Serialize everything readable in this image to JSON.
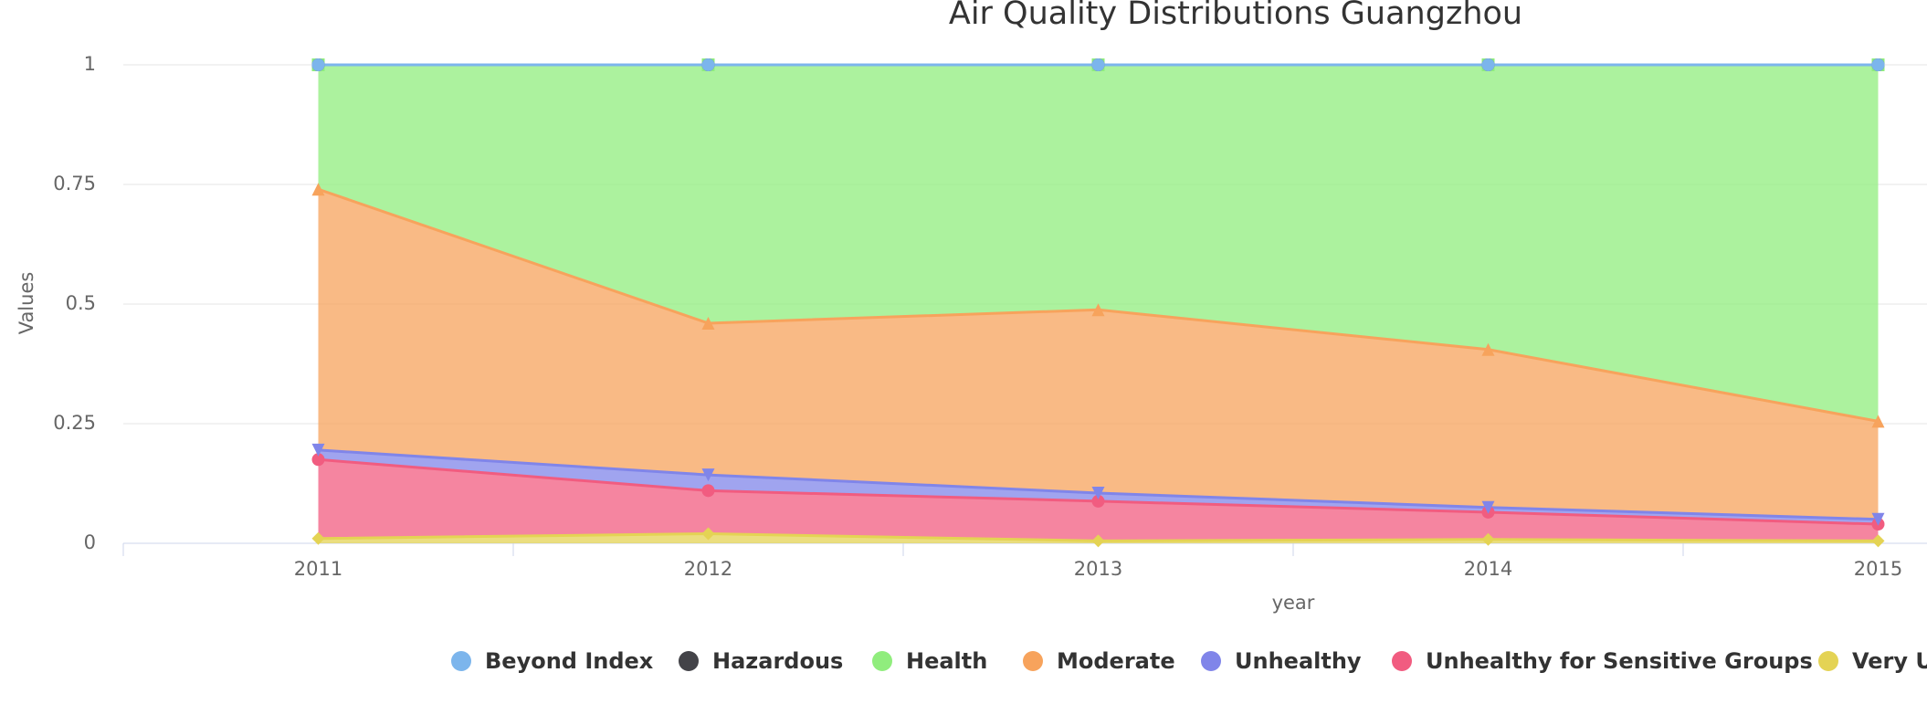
{
  "chart_data": {
    "type": "area",
    "stacked": true,
    "title": "Air Quality Distributions Guangzhou",
    "x_label": "year",
    "y_label": "Values",
    "categories": [
      "2011",
      "2012",
      "2013",
      "2014",
      "2015"
    ],
    "ylim": [
      0,
      1
    ],
    "yticks": [
      0,
      0.25,
      0.5,
      0.75,
      1
    ],
    "grid": true,
    "series": [
      {
        "name": "Beyond Index",
        "color": "#7cb5ec",
        "marker": "circle",
        "values": [
          0,
          0,
          0,
          0,
          0
        ]
      },
      {
        "name": "Hazardous",
        "color": "#434348",
        "marker": "circle",
        "values": [
          0,
          0,
          0,
          0,
          0
        ]
      },
      {
        "name": "Health",
        "color": "#90ed7d",
        "marker": "square",
        "values": [
          0.26,
          0.54,
          0.512,
          0.595,
          0.745
        ]
      },
      {
        "name": "Moderate",
        "color": "#f7a35c",
        "marker": "triangle",
        "values": [
          0.545,
          0.317,
          0.383,
          0.33,
          0.205
        ]
      },
      {
        "name": "Unhealthy",
        "color": "#8085e9",
        "marker": "triangle-down",
        "values": [
          0.02,
          0.033,
          0.017,
          0.01,
          0.01
        ]
      },
      {
        "name": "Unhealthy for Sensitive Groups",
        "color": "#f15c80",
        "marker": "circle",
        "values": [
          0.165,
          0.09,
          0.083,
          0.057,
          0.035
        ]
      },
      {
        "name": "Very Unhealthy",
        "color": "#e4d354",
        "marker": "diamond",
        "values": [
          0.01,
          0.02,
          0.005,
          0.008,
          0.005
        ]
      }
    ]
  }
}
